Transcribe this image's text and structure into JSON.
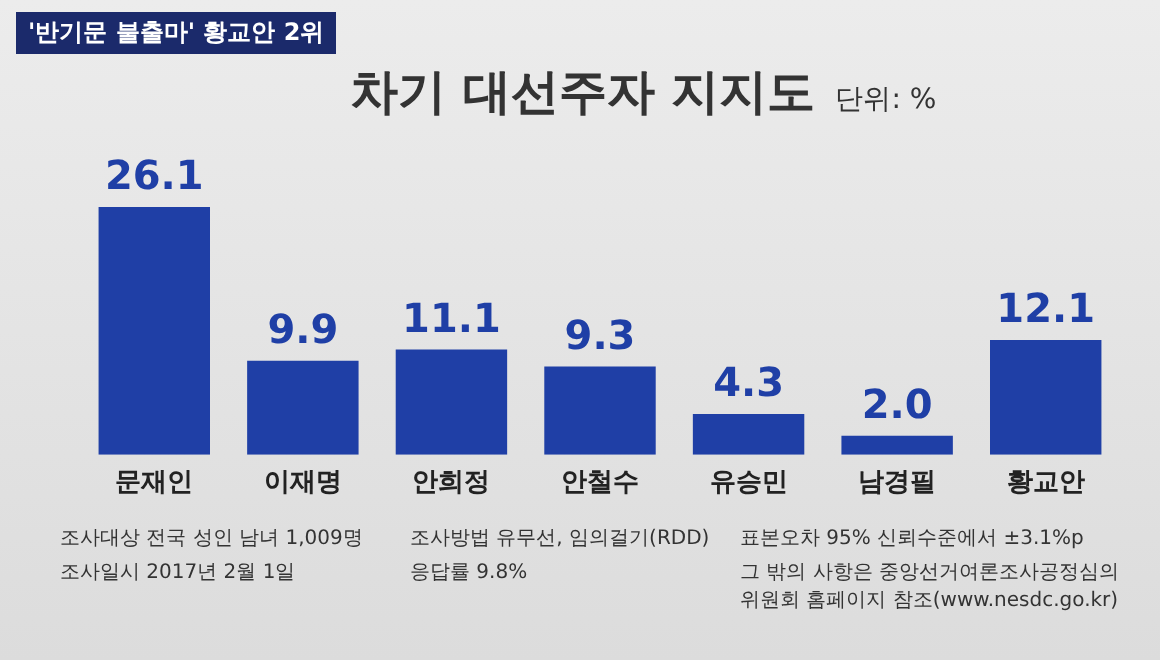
{
  "chart_data": {
    "type": "bar",
    "title": "차기 대선주자 지지도",
    "subtitle": "단위: %",
    "categories": [
      "문재인",
      "이재명",
      "안희정",
      "안철수",
      "유승민",
      "남경필",
      "황교안"
    ],
    "values": [
      26.1,
      9.9,
      11.1,
      9.3,
      4.3,
      2.0,
      12.1
    ],
    "color": "#1f3fa6",
    "value_labels": [
      "26.1",
      "9.9",
      "11.1",
      "9.3",
      "4.3",
      "2.0",
      "12.1"
    ],
    "grid": false,
    "legend": false,
    "annotations": [
      "'반기문 불출마' 황교안 2위",
      "조사대상 전국 성인 남녀 1,009명",
      "조사방법 유무선, 임의걸기(RDD)",
      "표본오차 95% 신뢰수준에서 ±3.1%p",
      "조사일시 2017년 2월 1일",
      "응답률 9.8%",
      "그 밖의 사항은 중앙선거여론조사공정심의위원회 홈페이지 참조(www.nesdc.go.kr)"
    ]
  }
}
